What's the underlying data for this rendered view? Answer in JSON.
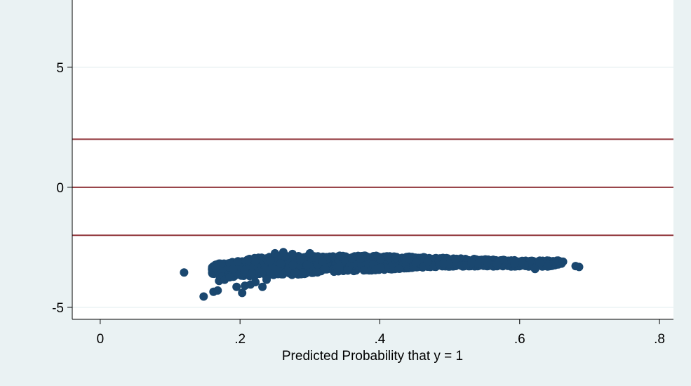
{
  "chart_data": {
    "type": "scatter",
    "title": "",
    "xlabel": "Predicted Probability that y = 1",
    "ylabel": "",
    "xlim": [
      -0.04,
      0.82
    ],
    "ylim": [
      -5.5,
      7.8
    ],
    "x_ticks": [
      0,
      0.2,
      0.4,
      0.6,
      0.8
    ],
    "x_tick_labels": [
      "0",
      ".2",
      ".4",
      ".6",
      ".8"
    ],
    "y_ticks": [
      -5,
      0,
      5
    ],
    "y_tick_labels": [
      "-5",
      "0",
      "5"
    ],
    "grid": "horizontal",
    "reference_lines": [
      2,
      0,
      -2
    ],
    "colors": {
      "background": "#eaf2f3",
      "plot_area": "#ffffff",
      "grid": "#eaf2f3",
      "points": "#1a476f",
      "reference_line": "#90353b"
    },
    "band": [
      {
        "x": 0.16,
        "y_min": -3.6,
        "y_max": -3.2
      },
      {
        "x": 0.18,
        "y_min": -3.75,
        "y_max": -3.15
      },
      {
        "x": 0.2,
        "y_min": -3.7,
        "y_max": -3.05
      },
      {
        "x": 0.22,
        "y_min": -3.7,
        "y_max": -2.95
      },
      {
        "x": 0.25,
        "y_min": -3.7,
        "y_max": -2.85
      },
      {
        "x": 0.3,
        "y_min": -3.6,
        "y_max": -2.85
      },
      {
        "x": 0.35,
        "y_min": -3.5,
        "y_max": -2.85
      },
      {
        "x": 0.4,
        "y_min": -3.45,
        "y_max": -2.85
      },
      {
        "x": 0.45,
        "y_min": -3.35,
        "y_max": -2.9
      },
      {
        "x": 0.5,
        "y_min": -3.3,
        "y_max": -2.95
      },
      {
        "x": 0.55,
        "y_min": -3.3,
        "y_max": -3.0
      },
      {
        "x": 0.6,
        "y_min": -3.3,
        "y_max": -3.05
      },
      {
        "x": 0.64,
        "y_min": -3.3,
        "y_max": -3.05
      },
      {
        "x": 0.66,
        "y_min": -3.2,
        "y_max": -3.05
      }
    ],
    "outliers": [
      {
        "x": 0.12,
        "y": -3.55
      },
      {
        "x": 0.148,
        "y": -4.55
      },
      {
        "x": 0.162,
        "y": -4.35
      },
      {
        "x": 0.168,
        "y": -4.3
      },
      {
        "x": 0.17,
        "y": -3.9
      },
      {
        "x": 0.178,
        "y": -3.85
      },
      {
        "x": 0.185,
        "y": -3.75
      },
      {
        "x": 0.195,
        "y": -4.15
      },
      {
        "x": 0.203,
        "y": -4.4
      },
      {
        "x": 0.207,
        "y": -4.1
      },
      {
        "x": 0.215,
        "y": -4.05
      },
      {
        "x": 0.222,
        "y": -3.95
      },
      {
        "x": 0.232,
        "y": -4.15
      },
      {
        "x": 0.238,
        "y": -3.85
      },
      {
        "x": 0.25,
        "y": -2.75
      },
      {
        "x": 0.262,
        "y": -2.7
      },
      {
        "x": 0.275,
        "y": -2.78
      },
      {
        "x": 0.3,
        "y": -2.75
      },
      {
        "x": 0.165,
        "y": -3.35
      },
      {
        "x": 0.19,
        "y": -3.4
      },
      {
        "x": 0.622,
        "y": -3.4
      },
      {
        "x": 0.64,
        "y": -3.3
      },
      {
        "x": 0.655,
        "y": -3.05
      },
      {
        "x": 0.662,
        "y": -3.1
      },
      {
        "x": 0.68,
        "y": -3.28
      },
      {
        "x": 0.685,
        "y": -3.32
      }
    ]
  }
}
